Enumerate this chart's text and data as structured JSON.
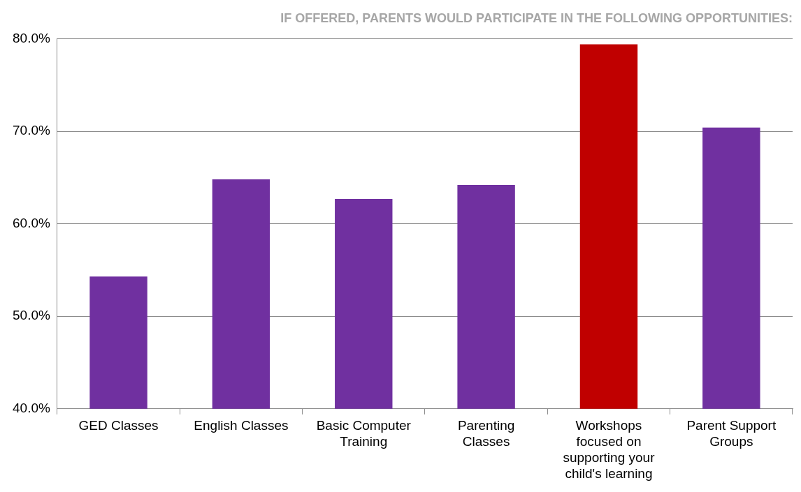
{
  "chart_data": {
    "type": "bar",
    "title": "IF OFFERED, PARENTS WOULD PARTICIPATE IN THE FOLLOWING OPPORTUNITIES:",
    "categories": [
      "GED Classes",
      "English Classes",
      "Basic Computer Training",
      "Parenting Classes",
      "Workshops focused on supporting your child's learning",
      "Parent Support Groups"
    ],
    "values": [
      54.3,
      64.8,
      62.7,
      64.2,
      79.4,
      70.4
    ],
    "colors": [
      "#7030a0",
      "#7030a0",
      "#7030a0",
      "#7030a0",
      "#c00000",
      "#7030a0"
    ],
    "ylim": [
      40,
      80
    ],
    "yticks": [
      {
        "value": 40,
        "label": "40.0%"
      },
      {
        "value": 50,
        "label": "50.0%"
      },
      {
        "value": 60,
        "label": "60.0%"
      },
      {
        "value": 70,
        "label": "70.0%"
      },
      {
        "value": 80,
        "label": "80.0%"
      }
    ],
    "grid": "y",
    "legend": false
  }
}
